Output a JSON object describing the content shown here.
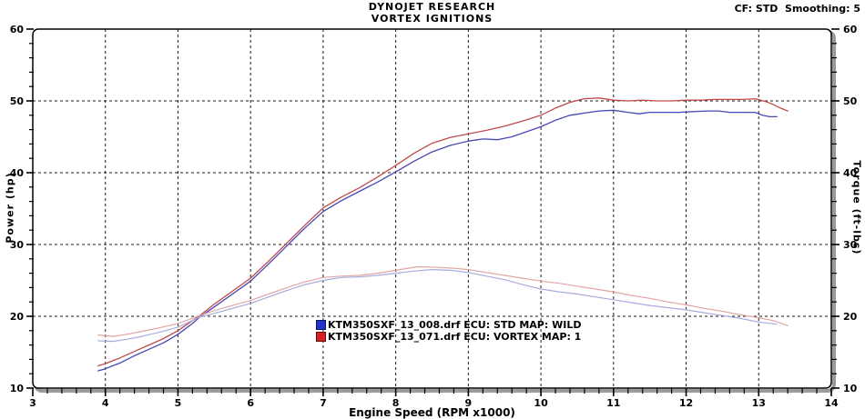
{
  "window": {
    "cf_smoothing": "CF: STD  Smoothing: 5"
  },
  "chart_data": {
    "type": "line",
    "title": "DYNOJET RESEARCH",
    "subtitle": "VORTEX IGNITIONS",
    "xlabel": "Engine Speed (RPM x1000)",
    "ylabel_left": "Power (hp)",
    "ylabel_right": "Torque (ft-lbs)",
    "xlim": [
      3,
      14
    ],
    "ylim": [
      10,
      60
    ],
    "x_major_ticks": [
      3,
      4,
      5,
      6,
      7,
      8,
      9,
      10,
      11,
      12,
      13,
      14
    ],
    "x_minor_step": 0.2,
    "y_major_ticks": [
      10,
      20,
      30,
      40,
      50,
      60
    ],
    "y_minor_step": 2,
    "grid": {
      "show": true,
      "style": "dashed",
      "color": "#1a1a1a",
      "x_lines": [
        4,
        5,
        6,
        7,
        8,
        9,
        10,
        11,
        12,
        13
      ],
      "y_lines": [
        20,
        30,
        40,
        50
      ]
    },
    "frame": {
      "border_color": "#000000",
      "shadow_color": "#9a9a9a"
    },
    "legend": {
      "position": "inside-bottom-center",
      "entries": [
        {
          "label": "KTM350SXF_13_008.drf ECU: STD MAP: WILD",
          "marker_color": "#2233cc",
          "marker_border": "#11115e"
        },
        {
          "label": "KTM350SXF_13_071.drf ECU: VORTEX MAP: 1",
          "marker_color": "#d42222",
          "marker_border": "#5e1111"
        }
      ]
    },
    "series": [
      {
        "name": "power-std-map-wild",
        "unit": "hp",
        "axis": "left",
        "color": "#4646b4",
        "width": 1.3,
        "points": [
          [
            3.9,
            12.4
          ],
          [
            4.0,
            12.7
          ],
          [
            4.2,
            13.5
          ],
          [
            4.4,
            14.5
          ],
          [
            4.6,
            15.4
          ],
          [
            4.8,
            16.3
          ],
          [
            5.0,
            17.5
          ],
          [
            5.2,
            19.0
          ],
          [
            5.3,
            19.9
          ],
          [
            5.5,
            21.3
          ],
          [
            5.75,
            23.1
          ],
          [
            6.0,
            24.9
          ],
          [
            6.25,
            27.3
          ],
          [
            6.5,
            29.8
          ],
          [
            6.75,
            32.3
          ],
          [
            7.0,
            34.6
          ],
          [
            7.25,
            36.1
          ],
          [
            7.5,
            37.4
          ],
          [
            7.75,
            38.7
          ],
          [
            8.0,
            40.1
          ],
          [
            8.25,
            41.6
          ],
          [
            8.5,
            42.9
          ],
          [
            8.75,
            43.8
          ],
          [
            9.0,
            44.4
          ],
          [
            9.2,
            44.7
          ],
          [
            9.4,
            44.6
          ],
          [
            9.6,
            45.0
          ],
          [
            9.8,
            45.7
          ],
          [
            10.0,
            46.4
          ],
          [
            10.2,
            47.3
          ],
          [
            10.4,
            48.0
          ],
          [
            10.6,
            48.3
          ],
          [
            10.8,
            48.6
          ],
          [
            11.0,
            48.7
          ],
          [
            11.2,
            48.4
          ],
          [
            11.35,
            48.2
          ],
          [
            11.5,
            48.4
          ],
          [
            11.7,
            48.4
          ],
          [
            11.9,
            48.4
          ],
          [
            12.1,
            48.5
          ],
          [
            12.3,
            48.6
          ],
          [
            12.45,
            48.6
          ],
          [
            12.6,
            48.4
          ],
          [
            12.8,
            48.4
          ],
          [
            12.95,
            48.4
          ],
          [
            13.05,
            48.0
          ],
          [
            13.15,
            47.8
          ],
          [
            13.25,
            47.8
          ]
        ]
      },
      {
        "name": "power-vortex-map-1",
        "unit": "hp",
        "axis": "left",
        "color": "#bf4a4a",
        "width": 1.3,
        "points": [
          [
            3.9,
            13.1
          ],
          [
            4.0,
            13.4
          ],
          [
            4.2,
            14.2
          ],
          [
            4.4,
            15.1
          ],
          [
            4.6,
            16.0
          ],
          [
            4.8,
            16.9
          ],
          [
            5.0,
            18.0
          ],
          [
            5.2,
            19.4
          ],
          [
            5.3,
            20.1
          ],
          [
            5.5,
            21.7
          ],
          [
            5.75,
            23.5
          ],
          [
            6.0,
            25.3
          ],
          [
            6.25,
            27.7
          ],
          [
            6.5,
            30.2
          ],
          [
            6.75,
            32.7
          ],
          [
            7.0,
            35.1
          ],
          [
            7.25,
            36.6
          ],
          [
            7.5,
            37.9
          ],
          [
            7.75,
            39.4
          ],
          [
            8.0,
            41.0
          ],
          [
            8.25,
            42.7
          ],
          [
            8.5,
            44.1
          ],
          [
            8.75,
            44.9
          ],
          [
            9.0,
            45.4
          ],
          [
            9.25,
            45.9
          ],
          [
            9.5,
            46.5
          ],
          [
            9.75,
            47.2
          ],
          [
            10.0,
            48.0
          ],
          [
            10.2,
            49.0
          ],
          [
            10.4,
            49.8
          ],
          [
            10.6,
            50.3
          ],
          [
            10.8,
            50.4
          ],
          [
            11.0,
            50.1
          ],
          [
            11.2,
            50.0
          ],
          [
            11.4,
            50.1
          ],
          [
            11.6,
            50.0
          ],
          [
            11.8,
            50.0
          ],
          [
            12.0,
            50.1
          ],
          [
            12.2,
            50.1
          ],
          [
            12.4,
            50.2
          ],
          [
            12.6,
            50.2
          ],
          [
            12.8,
            50.2
          ],
          [
            12.95,
            50.3
          ],
          [
            13.1,
            49.9
          ],
          [
            13.2,
            49.5
          ],
          [
            13.3,
            49.0
          ],
          [
            13.4,
            48.6
          ]
        ]
      },
      {
        "name": "torque-std-map-wild",
        "unit": "ft-lbs",
        "axis": "right",
        "color": "#a6acdc",
        "width": 1.2,
        "points": [
          [
            3.9,
            16.6
          ],
          [
            4.1,
            16.5
          ],
          [
            4.3,
            16.8
          ],
          [
            4.5,
            17.2
          ],
          [
            4.75,
            17.8
          ],
          [
            5.0,
            18.5
          ],
          [
            5.3,
            19.9
          ],
          [
            5.5,
            20.4
          ],
          [
            5.75,
            21.1
          ],
          [
            6.0,
            21.8
          ],
          [
            6.25,
            22.7
          ],
          [
            6.5,
            23.6
          ],
          [
            6.75,
            24.4
          ],
          [
            7.0,
            25.0
          ],
          [
            7.25,
            25.4
          ],
          [
            7.5,
            25.5
          ],
          [
            7.75,
            25.7
          ],
          [
            8.0,
            26.0
          ],
          [
            8.25,
            26.3
          ],
          [
            8.5,
            26.5
          ],
          [
            8.75,
            26.4
          ],
          [
            9.0,
            26.1
          ],
          [
            9.25,
            25.6
          ],
          [
            9.5,
            25.1
          ],
          [
            9.75,
            24.4
          ],
          [
            10.0,
            23.8
          ],
          [
            10.25,
            23.4
          ],
          [
            10.5,
            23.1
          ],
          [
            10.75,
            22.7
          ],
          [
            11.0,
            22.3
          ],
          [
            11.25,
            21.9
          ],
          [
            11.5,
            21.5
          ],
          [
            11.75,
            21.2
          ],
          [
            12.0,
            20.9
          ],
          [
            12.25,
            20.5
          ],
          [
            12.5,
            20.1
          ],
          [
            12.75,
            19.7
          ],
          [
            13.0,
            19.2
          ],
          [
            13.25,
            18.9
          ]
        ]
      },
      {
        "name": "torque-vortex-map-1",
        "unit": "ft-lbs",
        "axis": "right",
        "color": "#e0a6a6",
        "width": 1.2,
        "points": [
          [
            3.9,
            17.4
          ],
          [
            4.1,
            17.2
          ],
          [
            4.3,
            17.5
          ],
          [
            4.5,
            17.9
          ],
          [
            4.75,
            18.4
          ],
          [
            5.0,
            19.0
          ],
          [
            5.3,
            20.1
          ],
          [
            5.5,
            20.8
          ],
          [
            5.75,
            21.5
          ],
          [
            6.0,
            22.2
          ],
          [
            6.25,
            23.1
          ],
          [
            6.5,
            24.0
          ],
          [
            6.75,
            24.8
          ],
          [
            7.0,
            25.4
          ],
          [
            7.25,
            25.6
          ],
          [
            7.5,
            25.7
          ],
          [
            7.75,
            26.0
          ],
          [
            8.0,
            26.4
          ],
          [
            8.3,
            26.9
          ],
          [
            8.6,
            26.8
          ],
          [
            8.8,
            26.7
          ],
          [
            9.0,
            26.5
          ],
          [
            9.25,
            26.1
          ],
          [
            9.5,
            25.7
          ],
          [
            9.75,
            25.3
          ],
          [
            10.0,
            24.9
          ],
          [
            10.25,
            24.6
          ],
          [
            10.5,
            24.2
          ],
          [
            10.75,
            23.8
          ],
          [
            11.0,
            23.4
          ],
          [
            11.25,
            22.9
          ],
          [
            11.5,
            22.5
          ],
          [
            11.75,
            22.0
          ],
          [
            12.0,
            21.6
          ],
          [
            12.25,
            21.1
          ],
          [
            12.5,
            20.7
          ],
          [
            12.75,
            20.2
          ],
          [
            13.0,
            19.8
          ],
          [
            13.2,
            19.4
          ],
          [
            13.4,
            18.7
          ]
        ]
      }
    ]
  }
}
